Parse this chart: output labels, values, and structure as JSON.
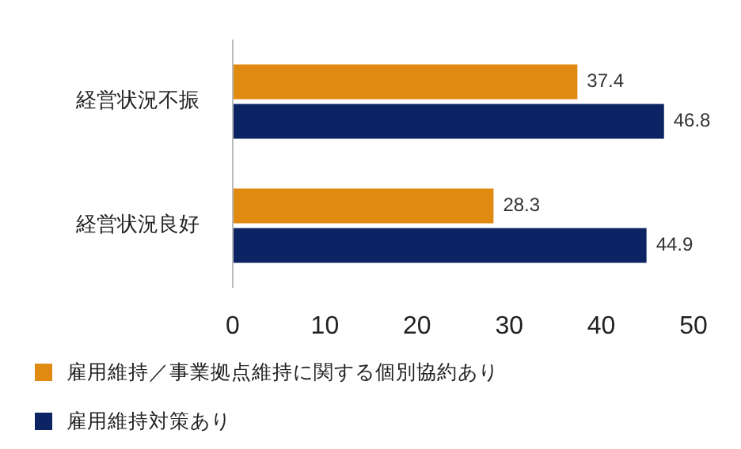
{
  "chart_data": {
    "type": "bar",
    "orientation": "horizontal",
    "categories": [
      "経営状況不振",
      "経営状況良好"
    ],
    "series": [
      {
        "name": "雇用維持／事業拠点維持に関する個別協約あり",
        "color": "#e08a12",
        "values": [
          37.4,
          28.3
        ]
      },
      {
        "name": "雇用維持対策あり",
        "color": "#0c2463",
        "values": [
          46.8,
          44.9
        ]
      }
    ],
    "xlim": [
      0,
      50
    ],
    "xticks": [
      0,
      10,
      20,
      30,
      40,
      50
    ],
    "data_labels": true,
    "legend": "bottom"
  }
}
